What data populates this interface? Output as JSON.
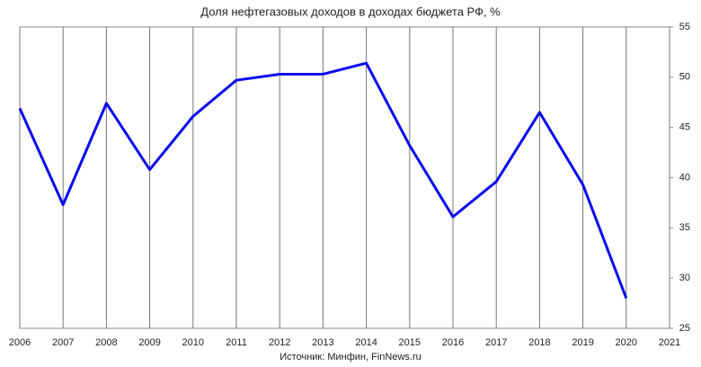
{
  "chart_data": {
    "type": "line",
    "title": "Доля нефтегазовых доходов в доходах бюджета РФ, %",
    "source": "Источник: Минфин, FinNews.ru",
    "x": [
      2006,
      2007,
      2008,
      2009,
      2010,
      2011,
      2012,
      2013,
      2014,
      2015,
      2016,
      2017,
      2018,
      2019,
      2020
    ],
    "series": [
      {
        "name": "Доля нефтегазовых доходов",
        "color": "#0a0aee",
        "values": [
          46.9,
          37.3,
          47.4,
          40.8,
          46.1,
          49.7,
          50.3,
          50.3,
          51.4,
          43.2,
          36.1,
          39.6,
          46.5,
          39.3,
          28.0
        ]
      }
    ],
    "xlim": [
      2006,
      2021
    ],
    "xticks": [
      2006,
      2007,
      2008,
      2009,
      2010,
      2011,
      2012,
      2013,
      2014,
      2015,
      2016,
      2017,
      2018,
      2019,
      2020,
      2021
    ],
    "ylim": [
      25,
      55
    ],
    "yticks": [
      25,
      30,
      35,
      40,
      45,
      50,
      55
    ],
    "grid": "x",
    "y_axis_side": "right"
  }
}
